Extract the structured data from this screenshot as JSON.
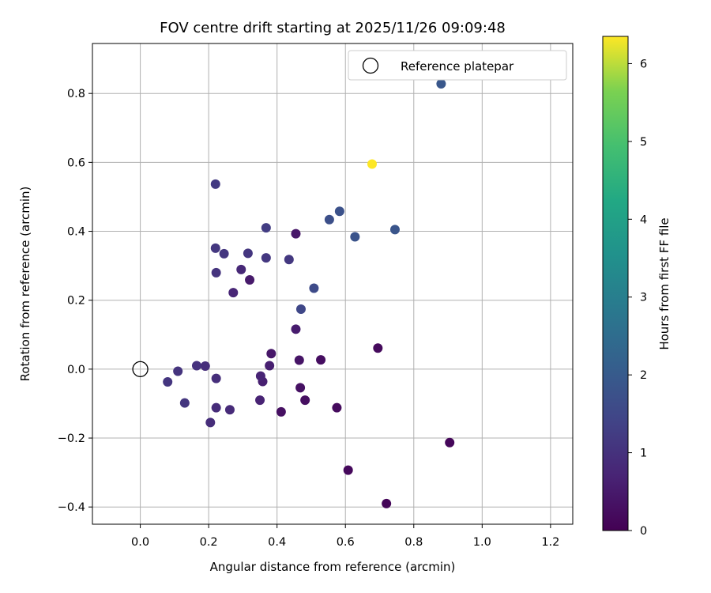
{
  "chart_data": {
    "type": "scatter",
    "title": "FOV centre drift starting at 2025/11/26 09:09:48",
    "xlabel": "Angular distance from reference (arcmin)",
    "ylabel": "Rotation from reference (arcmin)",
    "xlim": [
      -0.14,
      1.265
    ],
    "ylim": [
      -0.45,
      0.945
    ],
    "xticks": [
      0.0,
      0.2,
      0.4,
      0.6,
      0.8,
      1.0,
      1.2
    ],
    "xtick_labels": [
      "0.0",
      "0.2",
      "0.4",
      "0.6",
      "0.8",
      "1.0",
      "1.2"
    ],
    "yticks": [
      -0.4,
      -0.2,
      0.0,
      0.2,
      0.4,
      0.6,
      0.8
    ],
    "ytick_labels": [
      "−0.4",
      "−0.2",
      "0.0",
      "0.2",
      "0.4",
      "0.6",
      "0.8"
    ],
    "grid": true,
    "legend": {
      "position": "top-right",
      "entries": [
        "Reference platepar"
      ]
    },
    "reference_point": {
      "x": 0.0,
      "y": 0.0
    },
    "colorbar": {
      "label": "Hours from first FF file",
      "colormap": "viridis",
      "range": [
        0,
        6.35
      ],
      "ticks": [
        0,
        1,
        2,
        3,
        4,
        5,
        6
      ],
      "tick_labels": [
        "0",
        "1",
        "2",
        "3",
        "4",
        "5",
        "6"
      ]
    },
    "points": [
      {
        "x": 0.72,
        "y": -0.39,
        "h": 0.08
      },
      {
        "x": 0.905,
        "y": -0.213,
        "h": 0.12
      },
      {
        "x": 0.608,
        "y": -0.293,
        "h": 0.15
      },
      {
        "x": 0.695,
        "y": 0.061,
        "h": 0.18
      },
      {
        "x": 0.575,
        "y": -0.112,
        "h": 0.2
      },
      {
        "x": 0.528,
        "y": 0.027,
        "h": 0.25
      },
      {
        "x": 0.482,
        "y": -0.09,
        "h": 0.28
      },
      {
        "x": 0.412,
        "y": -0.124,
        "h": 0.3
      },
      {
        "x": 0.468,
        "y": -0.054,
        "h": 0.33
      },
      {
        "x": 0.465,
        "y": 0.026,
        "h": 0.38
      },
      {
        "x": 0.383,
        "y": 0.045,
        "h": 0.42
      },
      {
        "x": 0.455,
        "y": 0.393,
        "h": 0.45
      },
      {
        "x": 0.32,
        "y": 0.259,
        "h": 0.5
      },
      {
        "x": 0.455,
        "y": 0.116,
        "h": 0.55
      },
      {
        "x": 0.378,
        "y": 0.01,
        "h": 0.6
      },
      {
        "x": 0.358,
        "y": -0.036,
        "h": 0.62
      },
      {
        "x": 0.35,
        "y": -0.09,
        "h": 0.68
      },
      {
        "x": 0.352,
        "y": -0.02,
        "h": 0.72
      },
      {
        "x": 0.272,
        "y": 0.222,
        "h": 0.75
      },
      {
        "x": 0.295,
        "y": 0.289,
        "h": 0.8
      },
      {
        "x": 0.262,
        "y": -0.118,
        "h": 0.85
      },
      {
        "x": 0.222,
        "y": -0.112,
        "h": 0.88
      },
      {
        "x": 0.205,
        "y": -0.155,
        "h": 0.9
      },
      {
        "x": 0.19,
        "y": 0.009,
        "h": 0.92
      },
      {
        "x": 0.222,
        "y": -0.027,
        "h": 0.95
      },
      {
        "x": 0.165,
        "y": 0.01,
        "h": 1.0
      },
      {
        "x": 0.11,
        "y": -0.006,
        "h": 1.05
      },
      {
        "x": 0.08,
        "y": -0.037,
        "h": 1.08
      },
      {
        "x": 0.13,
        "y": -0.098,
        "h": 1.1
      },
      {
        "x": 0.222,
        "y": 0.28,
        "h": 1.05
      },
      {
        "x": 0.245,
        "y": 0.335,
        "h": 1.1
      },
      {
        "x": 0.22,
        "y": 0.351,
        "h": 1.15
      },
      {
        "x": 0.315,
        "y": 0.336,
        "h": 1.1
      },
      {
        "x": 0.368,
        "y": 0.323,
        "h": 1.12
      },
      {
        "x": 0.435,
        "y": 0.318,
        "h": 1.15
      },
      {
        "x": 0.368,
        "y": 0.41,
        "h": 1.25
      },
      {
        "x": 0.22,
        "y": 0.537,
        "h": 1.2
      },
      {
        "x": 0.47,
        "y": 0.174,
        "h": 1.5
      },
      {
        "x": 0.508,
        "y": 0.235,
        "h": 1.6
      },
      {
        "x": 0.553,
        "y": 0.434,
        "h": 1.7
      },
      {
        "x": 0.583,
        "y": 0.458,
        "h": 1.75
      },
      {
        "x": 0.628,
        "y": 0.384,
        "h": 1.8
      },
      {
        "x": 0.745,
        "y": 0.405,
        "h": 1.85
      },
      {
        "x": 0.88,
        "y": 0.828,
        "h": 1.9
      },
      {
        "x": 0.678,
        "y": 0.595,
        "h": 6.35
      }
    ]
  }
}
